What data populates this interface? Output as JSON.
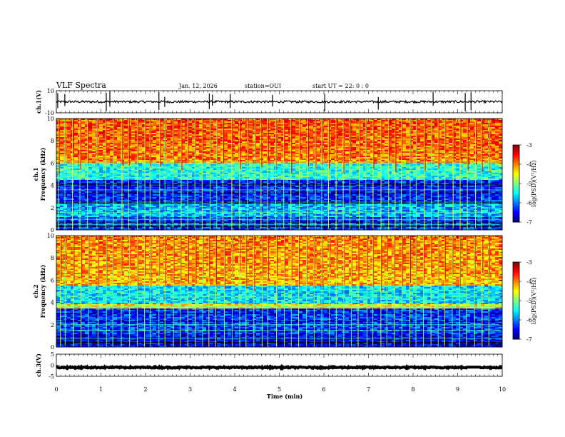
{
  "chart_data": {
    "type": "heatmap",
    "title": "VLF Spectra",
    "header": {
      "date": "Jan. 12, 2026",
      "station": "station=OUI",
      "start": "start UT =  22: 0 : 0"
    },
    "x_axis": {
      "label": "Time (min)",
      "range": [
        0,
        10
      ],
      "ticks": [
        "0",
        "1",
        "2",
        "3",
        "4",
        "5",
        "6",
        "7",
        "8",
        "9",
        "10"
      ]
    },
    "panels": [
      {
        "id": "ch1-waveform",
        "type": "line",
        "ylabel": "ch.1(V)",
        "ylim": [
          -10,
          10
        ],
        "yticks": [
          "10",
          "-10"
        ],
        "baseline": 0,
        "noise_amplitude": 1,
        "spikes_min": [
          0.03,
          0.19,
          1.12,
          1.2,
          2.3,
          2.43,
          3.43,
          3.5,
          3.9,
          4.85,
          6.02,
          7.22,
          8.45,
          9.17,
          9.3
        ]
      },
      {
        "id": "ch1-spectrogram",
        "type": "heatmap",
        "ylabel": "ch.1\nFrequency (kHz)",
        "ylim": [
          0,
          10
        ],
        "yticks": [
          "0",
          "2",
          "4",
          "6",
          "8",
          "10"
        ],
        "colorbar": {
          "label": "log(PSD)(V²/Hz)",
          "range": [
            -7,
            -3
          ],
          "ticks": [
            "-3",
            "-4",
            "-5",
            "-6",
            "-7"
          ]
        },
        "bands_khz": [
          {
            "from": 6.0,
            "to": 10.0,
            "level": -4.0
          },
          {
            "from": 4.5,
            "to": 6.0,
            "level": -5.4
          },
          {
            "from": 2.6,
            "to": 4.5,
            "level": -6.4
          },
          {
            "from": 1.2,
            "to": 2.6,
            "level": -5.8
          },
          {
            "from": 0.0,
            "to": 1.2,
            "level": -6.3
          }
        ],
        "dark_lines_khz": [
          2.4,
          2.5,
          3.3,
          4.1,
          0.7,
          0.3
        ],
        "bright_lines_khz": [
          0.5,
          0.95,
          1.55,
          3.6,
          5.0,
          5.7,
          6.1
        ]
      },
      {
        "id": "ch2-spectrogram",
        "type": "heatmap",
        "ylabel": "ch.2\nFrequency (kHz)",
        "ylim": [
          0,
          10
        ],
        "yticks": [
          "0",
          "2",
          "4",
          "6",
          "8",
          "10"
        ],
        "colorbar": {
          "label": "log(PSD)(V²/Hz)",
          "range": [
            -7,
            -3
          ],
          "ticks": [
            "-3",
            "-4",
            "-5",
            "-6",
            "-7"
          ]
        },
        "bands_khz": [
          {
            "from": 5.5,
            "to": 10.0,
            "level": -4.2
          },
          {
            "from": 3.8,
            "to": 5.5,
            "level": -5.6
          },
          {
            "from": 3.4,
            "to": 3.8,
            "level": -4.5
          },
          {
            "from": 1.2,
            "to": 3.4,
            "level": -6.3
          },
          {
            "from": 0.0,
            "to": 1.2,
            "level": -6.6
          }
        ],
        "dark_lines_khz": [
          2.3,
          3.0,
          0.4
        ],
        "bright_lines_khz": [
          1.5,
          2.0,
          3.6,
          4.5,
          0.8
        ]
      },
      {
        "id": "ch3-waveform",
        "type": "line",
        "ylabel": "ch.3(V)",
        "ylim": [
          -5,
          5
        ],
        "yticks": [
          "5",
          "0",
          "-5"
        ],
        "baseline": -1,
        "noise_amplitude": 0.3,
        "gap_min": [
          9.2,
          9.5
        ],
        "spikes_min": []
      }
    ],
    "sferic_times_min": [
      0.07,
      0.2,
      0.38,
      0.55,
      0.72,
      0.92,
      1.12,
      1.28,
      1.47,
      1.63,
      1.82,
      1.97,
      2.12,
      2.3,
      2.45,
      2.63,
      2.8,
      2.95,
      3.12,
      3.28,
      3.43,
      3.58,
      3.75,
      3.92,
      4.1,
      4.27,
      4.43,
      4.6,
      4.75,
      4.92,
      5.1,
      5.27,
      5.45,
      5.62,
      5.8,
      5.95,
      6.1,
      6.27,
      6.43,
      6.6,
      6.78,
      6.95,
      7.12,
      7.27,
      7.43,
      7.6,
      7.75,
      7.92,
      8.08,
      8.25,
      8.4,
      8.55,
      8.72,
      8.88,
      9.05,
      9.22,
      9.4,
      9.55,
      9.72
    ]
  }
}
